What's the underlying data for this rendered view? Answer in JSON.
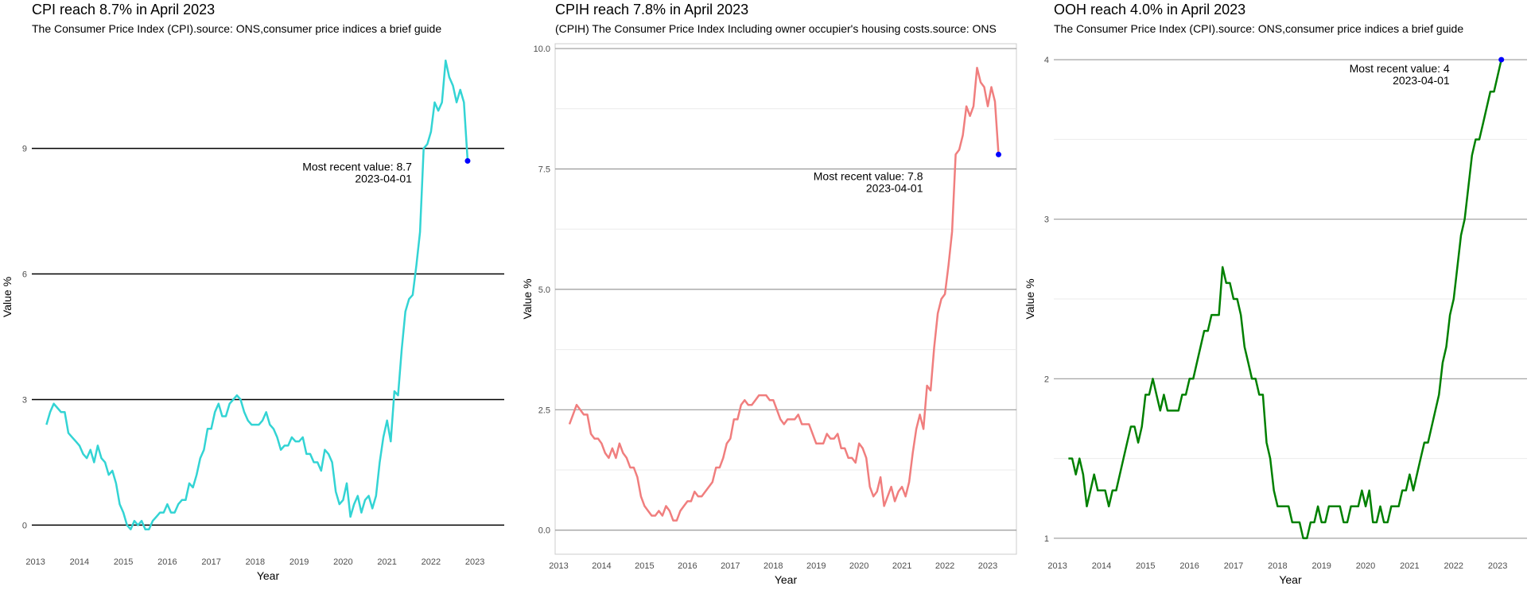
{
  "chart_data": [
    {
      "type": "line",
      "title": "CPI reach 8.7% in April 2023",
      "subtitle": "The Consumer Price Index (CPI).source: ONS,consumer price indices a brief guide",
      "xlabel": "Year",
      "ylabel": "Value %",
      "x_ticks": [
        "2013",
        "2014",
        "2015",
        "2016",
        "2017",
        "2018",
        "2019",
        "2020",
        "2021",
        "2022",
        "2023"
      ],
      "y_ticks": [
        "0",
        "3",
        "6",
        "9"
      ],
      "xlim": [
        "2012-12-01",
        "2023-09-01"
      ],
      "ylim": [
        -0.6,
        11.5
      ],
      "color": "#33d4d4",
      "grid": "major horizontal",
      "start_month": "2013-04",
      "values": [
        2.4,
        2.7,
        2.9,
        2.8,
        2.7,
        2.7,
        2.2,
        2.1,
        2.0,
        1.9,
        1.7,
        1.6,
        1.8,
        1.5,
        1.9,
        1.6,
        1.5,
        1.2,
        1.3,
        1.0,
        0.5,
        0.3,
        0.0,
        -0.1,
        0.1,
        0.0,
        0.1,
        -0.1,
        -0.1,
        0.1,
        0.2,
        0.3,
        0.3,
        0.5,
        0.3,
        0.3,
        0.5,
        0.6,
        0.6,
        1.0,
        0.9,
        1.2,
        1.6,
        1.8,
        2.3,
        2.3,
        2.7,
        2.9,
        2.6,
        2.6,
        2.9,
        3.0,
        3.1,
        3.0,
        2.7,
        2.5,
        2.4,
        2.4,
        2.4,
        2.5,
        2.7,
        2.4,
        2.3,
        2.1,
        1.8,
        1.9,
        1.9,
        2.1,
        2.0,
        2.0,
        2.1,
        1.7,
        1.7,
        1.5,
        1.5,
        1.3,
        1.8,
        1.7,
        1.5,
        0.8,
        0.5,
        0.6,
        1.0,
        0.2,
        0.5,
        0.7,
        0.3,
        0.6,
        0.7,
        0.4,
        0.7,
        1.5,
        2.1,
        2.5,
        2.0,
        3.2,
        3.1,
        4.2,
        5.1,
        5.4,
        5.5,
        6.2,
        7.0,
        9.0,
        9.1,
        9.4,
        10.1,
        9.9,
        10.1,
        11.1,
        10.7,
        10.5,
        10.1,
        10.4,
        10.1,
        8.7
      ],
      "annotation": {
        "label": "Most recent value: 8.7",
        "date": "2023-04-01"
      }
    },
    {
      "type": "line",
      "title": "CPIH reach 7.8% in April 2023",
      "subtitle": "(CPIH) The Consumer Price Index Including owner occupier's housing costs.source: ONS",
      "xlabel": "Year",
      "ylabel": "Value %",
      "x_ticks": [
        "2013",
        "2014",
        "2015",
        "2016",
        "2017",
        "2018",
        "2019",
        "2020",
        "2021",
        "2022",
        "2023"
      ],
      "y_ticks": [
        "0.0",
        "2.5",
        "5.0",
        "7.5",
        "10.0"
      ],
      "xlim": [
        "2012-12-01",
        "2023-09-01"
      ],
      "ylim": [
        -0.5,
        10.1
      ],
      "color": "#f07e7e",
      "grid": "major and minor horizontal",
      "start_month": "2013-04",
      "values": [
        2.2,
        2.4,
        2.6,
        2.5,
        2.4,
        2.4,
        2.0,
        1.9,
        1.9,
        1.8,
        1.6,
        1.5,
        1.7,
        1.5,
        1.8,
        1.6,
        1.5,
        1.3,
        1.3,
        1.1,
        0.7,
        0.5,
        0.4,
        0.3,
        0.3,
        0.4,
        0.3,
        0.5,
        0.4,
        0.2,
        0.2,
        0.4,
        0.5,
        0.6,
        0.6,
        0.8,
        0.7,
        0.7,
        0.8,
        0.9,
        1.0,
        1.3,
        1.3,
        1.5,
        1.8,
        1.9,
        2.3,
        2.3,
        2.6,
        2.7,
        2.6,
        2.6,
        2.7,
        2.8,
        2.8,
        2.8,
        2.7,
        2.7,
        2.5,
        2.3,
        2.2,
        2.3,
        2.3,
        2.3,
        2.4,
        2.2,
        2.2,
        2.2,
        2.0,
        1.8,
        1.8,
        1.8,
        2.0,
        1.9,
        1.9,
        2.0,
        1.7,
        1.7,
        1.5,
        1.5,
        1.4,
        1.8,
        1.7,
        1.5,
        0.9,
        0.7,
        0.8,
        1.1,
        0.5,
        0.7,
        0.9,
        0.6,
        0.8,
        0.9,
        0.7,
        1.0,
        1.6,
        2.1,
        2.4,
        2.1,
        3.0,
        2.9,
        3.8,
        4.5,
        4.8,
        4.9,
        5.5,
        6.2,
        7.8,
        7.9,
        8.2,
        8.8,
        8.6,
        8.8,
        9.6,
        9.3,
        9.2,
        8.8,
        9.2,
        8.9,
        7.8
      ],
      "annotation": {
        "label": "Most recent value: 7.8",
        "date": "2023-04-01"
      }
    },
    {
      "type": "line",
      "title": "OOH reach 4.0% in April 2023",
      "subtitle": "The Consumer Price Index (CPI).source: ONS,consumer price indices a brief guide",
      "xlabel": "Year",
      "ylabel": "Value %",
      "x_ticks": [
        "2013",
        "2014",
        "2015",
        "2016",
        "2017",
        "2018",
        "2019",
        "2020",
        "2021",
        "2022",
        "2023"
      ],
      "y_ticks": [
        "1",
        "2",
        "3",
        "4"
      ],
      "xlim": [
        "2012-12-01",
        "2023-09-01"
      ],
      "ylim": [
        0.9,
        4.1
      ],
      "color": "#008000",
      "grid": "major and minor horizontal",
      "start_month": "2013-04",
      "values": [
        1.5,
        1.5,
        1.4,
        1.5,
        1.4,
        1.2,
        1.3,
        1.4,
        1.3,
        1.3,
        1.3,
        1.2,
        1.3,
        1.3,
        1.4,
        1.5,
        1.6,
        1.7,
        1.7,
        1.6,
        1.7,
        1.9,
        1.9,
        2.0,
        1.9,
        1.8,
        1.9,
        1.8,
        1.8,
        1.8,
        1.8,
        1.9,
        1.9,
        2.0,
        2.0,
        2.1,
        2.2,
        2.3,
        2.3,
        2.4,
        2.4,
        2.4,
        2.7,
        2.6,
        2.6,
        2.5,
        2.5,
        2.4,
        2.2,
        2.1,
        2.0,
        2.0,
        1.9,
        1.9,
        1.6,
        1.5,
        1.3,
        1.2,
        1.2,
        1.2,
        1.2,
        1.1,
        1.1,
        1.1,
        1.0,
        1.0,
        1.1,
        1.1,
        1.2,
        1.1,
        1.1,
        1.2,
        1.2,
        1.2,
        1.2,
        1.1,
        1.1,
        1.2,
        1.2,
        1.2,
        1.3,
        1.2,
        1.3,
        1.1,
        1.1,
        1.2,
        1.1,
        1.1,
        1.2,
        1.2,
        1.2,
        1.3,
        1.3,
        1.4,
        1.3,
        1.4,
        1.5,
        1.6,
        1.6,
        1.7,
        1.8,
        1.9,
        2.1,
        2.2,
        2.4,
        2.5,
        2.7,
        2.9,
        3.0,
        3.2,
        3.4,
        3.5,
        3.5,
        3.6,
        3.7,
        3.8,
        3.8,
        3.9,
        4.0
      ],
      "annotation": {
        "label": "Most recent value: 4",
        "date": "2023-04-01"
      }
    }
  ]
}
